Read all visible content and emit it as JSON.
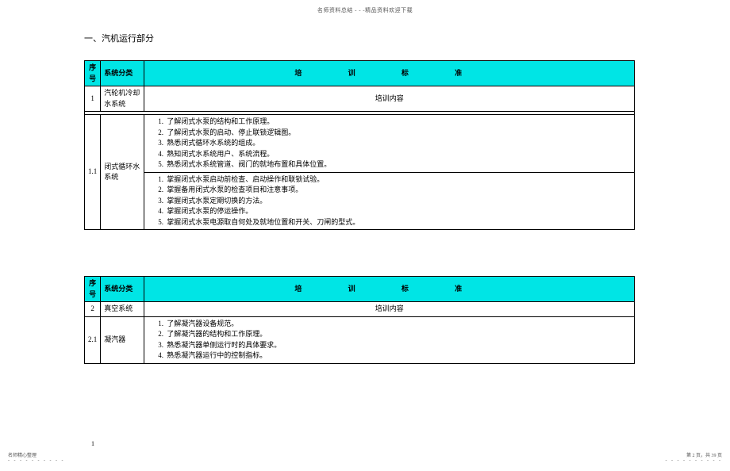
{
  "header_text": "名师资料总结 - - -精品资料欢迎下载",
  "section_title": "一、汽机运行部分",
  "table1": {
    "head": {
      "seq": "序号",
      "sys": "系统分类",
      "std": "培 训 标 准"
    },
    "row_a": {
      "seq": "1",
      "sys": "汽轮机冷却水系统",
      "content": "培训内容"
    },
    "row_b": {
      "seq": "1.1",
      "sys": "闭式循环水系统",
      "group1": [
        "了解闭式水泵的结构和工作原理。",
        "了解闭式水泵的启动、停止联锁逻辑图。",
        "熟悉闭式循环水系统的组成。",
        "熟知闭式水系统用户、系统流程。",
        "熟悉闭式水系统管道、阀门的就地布置和具体位置。"
      ],
      "group2": [
        "掌握闭式水泵启动前检查、启动操作和联锁试验。",
        "掌握备用闭式水泵的检查项目和注意事项。",
        "掌握闭式水泵定期切换的方法。",
        "掌握闭式水泵的停运操作。",
        "掌握闭式水泵电源取自何处及就地位置和开关、刀闸的型式。"
      ]
    }
  },
  "table2": {
    "head": {
      "seq": "序号",
      "sys": "系统分类",
      "std": "培 训 标 准"
    },
    "row_a": {
      "seq": "2",
      "sys": "真空系统",
      "content": "培训内容"
    },
    "row_b": {
      "seq": "2.1",
      "sys": "凝汽器",
      "items": [
        "了解凝汽器设备规范。",
        "了解凝汽器的结构和工作原理。",
        "熟悉凝汽器单侧运行时的具体要求。",
        "熟悉凝汽器运行中的控制指标。"
      ]
    }
  },
  "page_num_small": "1",
  "footer_left_line": "名师精心整理",
  "footer_right_line": "第 2 页，共 39 页",
  "dots": "- - - - - - - - - -"
}
